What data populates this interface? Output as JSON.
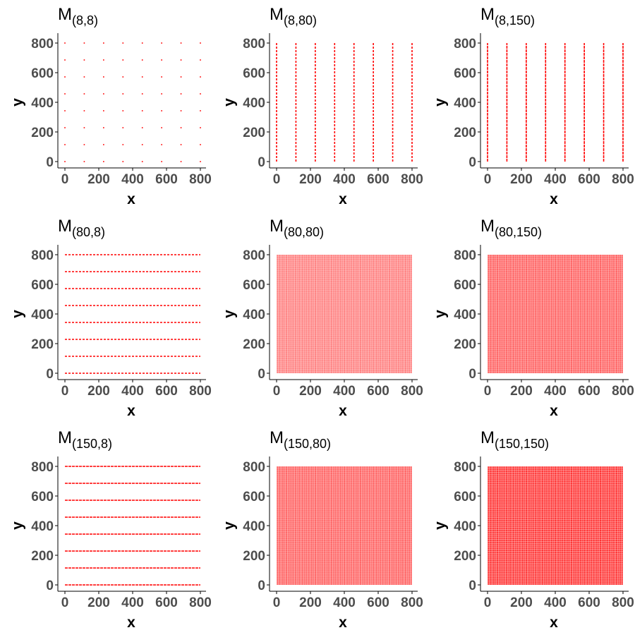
{
  "theme": {
    "point_color": "#ff0000",
    "axis_color": "#000000",
    "tick_label_color": "#4d4d4d"
  },
  "chart_data": [
    {
      "type": "scatter",
      "title": "M",
      "subscript": "(8,8)",
      "rows": 8,
      "cols": 8,
      "xlabel": "x",
      "ylabel": "y",
      "xlim": [
        0,
        800
      ],
      "ylim": [
        0,
        800
      ],
      "xticks": [
        0,
        200,
        400,
        600,
        800
      ],
      "yticks": [
        0,
        200,
        400,
        600,
        800
      ],
      "grid": false
    },
    {
      "type": "scatter",
      "title": "M",
      "subscript": "(8,80)",
      "rows": 8,
      "cols": 80,
      "xlabel": "x",
      "ylabel": "y",
      "xlim": [
        0,
        800
      ],
      "ylim": [
        0,
        800
      ],
      "xticks": [
        0,
        200,
        400,
        600,
        800
      ],
      "yticks": [
        0,
        200,
        400,
        600,
        800
      ],
      "grid": false
    },
    {
      "type": "scatter",
      "title": "M",
      "subscript": "(8,150)",
      "rows": 8,
      "cols": 150,
      "xlabel": "x",
      "ylabel": "y",
      "xlim": [
        0,
        800
      ],
      "ylim": [
        0,
        800
      ],
      "xticks": [
        0,
        200,
        400,
        600,
        800
      ],
      "yticks": [
        0,
        200,
        400,
        600,
        800
      ],
      "grid": false
    },
    {
      "type": "scatter",
      "title": "M",
      "subscript": "(80,8)",
      "rows": 80,
      "cols": 8,
      "xlabel": "x",
      "ylabel": "y",
      "xlim": [
        0,
        800
      ],
      "ylim": [
        0,
        800
      ],
      "xticks": [
        0,
        200,
        400,
        600,
        800
      ],
      "yticks": [
        0,
        200,
        400,
        600,
        800
      ],
      "grid": false
    },
    {
      "type": "scatter",
      "title": "M",
      "subscript": "(80,80)",
      "rows": 80,
      "cols": 80,
      "xlabel": "x",
      "ylabel": "y",
      "xlim": [
        0,
        800
      ],
      "ylim": [
        0,
        800
      ],
      "xticks": [
        0,
        200,
        400,
        600,
        800
      ],
      "yticks": [
        0,
        200,
        400,
        600,
        800
      ],
      "grid": false
    },
    {
      "type": "scatter",
      "title": "M",
      "subscript": "(80,150)",
      "rows": 80,
      "cols": 150,
      "xlabel": "x",
      "ylabel": "y",
      "xlim": [
        0,
        800
      ],
      "ylim": [
        0,
        800
      ],
      "xticks": [
        0,
        200,
        400,
        600,
        800
      ],
      "yticks": [
        0,
        200,
        400,
        600,
        800
      ],
      "grid": false
    },
    {
      "type": "scatter",
      "title": "M",
      "subscript": "(150,8)",
      "rows": 150,
      "cols": 8,
      "xlabel": "x",
      "ylabel": "y",
      "xlim": [
        0,
        800
      ],
      "ylim": [
        0,
        800
      ],
      "xticks": [
        0,
        200,
        400,
        600,
        800
      ],
      "yticks": [
        0,
        200,
        400,
        600,
        800
      ],
      "grid": false
    },
    {
      "type": "scatter",
      "title": "M",
      "subscript": "(150,80)",
      "rows": 150,
      "cols": 80,
      "xlabel": "x",
      "ylabel": "y",
      "xlim": [
        0,
        800
      ],
      "ylim": [
        0,
        800
      ],
      "xticks": [
        0,
        200,
        400,
        600,
        800
      ],
      "yticks": [
        0,
        200,
        400,
        600,
        800
      ],
      "grid": false
    },
    {
      "type": "scatter",
      "title": "M",
      "subscript": "(150,150)",
      "rows": 150,
      "cols": 150,
      "xlabel": "x",
      "ylabel": "y",
      "xlim": [
        0,
        800
      ],
      "ylim": [
        0,
        800
      ],
      "xticks": [
        0,
        200,
        400,
        600,
        800
      ],
      "yticks": [
        0,
        200,
        400,
        600,
        800
      ],
      "grid": false
    }
  ]
}
